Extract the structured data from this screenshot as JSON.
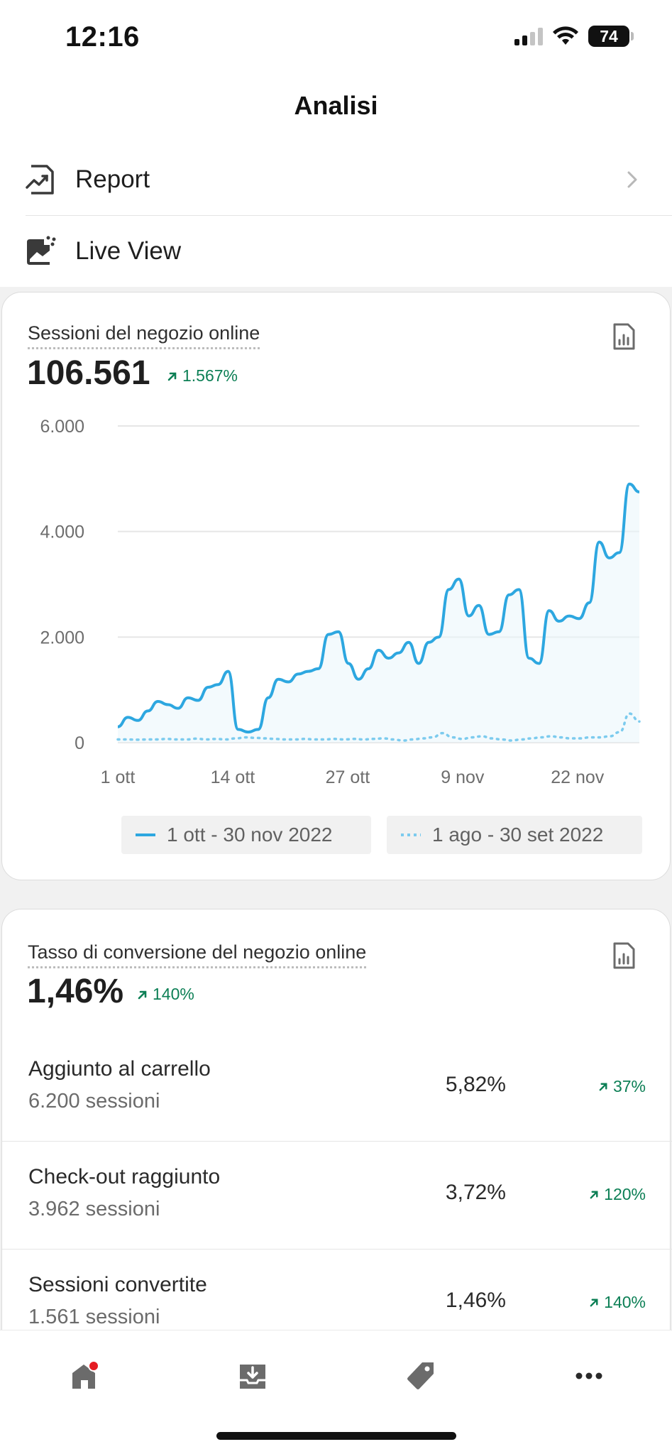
{
  "status_bar": {
    "time": "12:16",
    "battery": "74"
  },
  "header": {
    "title": "Analisi"
  },
  "menu": {
    "items": [
      {
        "label": "Report",
        "icon": "report-chart-icon"
      },
      {
        "label": "Live View",
        "icon": "live-view-icon"
      }
    ]
  },
  "sessions_card": {
    "title": "Sessioni del negozio online",
    "value": "106.561",
    "delta": "1.567%",
    "legend": [
      "1 ott - 30 nov 2022",
      "1 ago - 30 set 2022"
    ]
  },
  "chart_data": {
    "type": "line",
    "title": "Sessioni del negozio online",
    "xlabel": "",
    "ylabel": "",
    "ylim": [
      0,
      6000
    ],
    "yticks": [
      "6.000",
      "4.000",
      "2.000",
      "0"
    ],
    "xticks": [
      "1 ott",
      "14 ott",
      "27 ott",
      "9 nov",
      "22 nov"
    ],
    "grid": true,
    "colors": {
      "current": "#2da7e0",
      "previous": "#7ccbee"
    },
    "series": [
      {
        "name": "1 ott - 30 nov 2022",
        "style": "solid",
        "values": [
          300,
          480,
          420,
          600,
          780,
          720,
          650,
          850,
          800,
          1050,
          1100,
          1350,
          250,
          200,
          250,
          850,
          1200,
          1150,
          1300,
          1350,
          1400,
          2050,
          2100,
          1500,
          1200,
          1400,
          1750,
          1600,
          1700,
          1900,
          1500,
          1900,
          2000,
          2900,
          3100,
          2400,
          2600,
          2050,
          2100,
          2800,
          2900,
          1600,
          1500,
          2500,
          2300,
          2400,
          2350,
          2650,
          3800,
          3500,
          3600,
          4900,
          4750
        ]
      },
      {
        "name": "1 ago - 30 set 2022",
        "style": "dotted",
        "values": [
          60,
          60,
          55,
          60,
          60,
          70,
          60,
          60,
          75,
          60,
          70,
          60,
          80,
          100,
          90,
          80,
          70,
          60,
          60,
          70,
          60,
          60,
          70,
          60,
          70,
          60,
          70,
          80,
          60,
          40,
          60,
          80,
          100,
          180,
          100,
          70,
          100,
          120,
          80,
          60,
          40,
          60,
          80,
          100,
          120,
          100,
          80,
          80,
          100,
          100,
          120,
          200,
          550,
          400
        ]
      }
    ]
  },
  "conversion_card": {
    "title": "Tasso di conversione del negozio online",
    "value": "1,46%",
    "delta": "140%",
    "rows": [
      {
        "name": "Aggiunto al carrello",
        "sessions": "6.200 sessioni",
        "pct": "5,82%",
        "delta": "37%"
      },
      {
        "name": "Check-out raggiunto",
        "sessions": "3.962 sessioni",
        "pct": "3,72%",
        "delta": "120%"
      },
      {
        "name": "Sessioni convertite",
        "sessions": "1.561 sessioni",
        "pct": "1,46%",
        "delta": "140%"
      }
    ]
  },
  "tabbar": {
    "tabs": [
      "home-icon",
      "orders-inbox-icon",
      "products-tag-icon",
      "more-icon"
    ],
    "notification_color": "#e51c23"
  }
}
